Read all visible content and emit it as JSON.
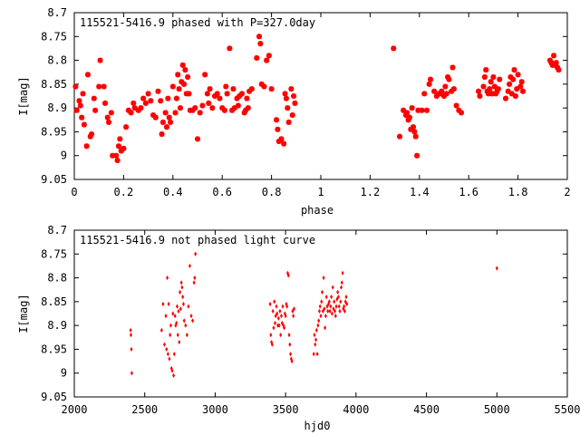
{
  "chart_data": [
    {
      "type": "scatter",
      "title": "115521-5416.9 phased with P=327.0day",
      "xlabel": "phase",
      "ylabel": "I[mag]",
      "xlim": [
        0,
        2
      ],
      "ylim": [
        9.05,
        8.7
      ],
      "y_inverted": true,
      "grid": false,
      "legend": "none",
      "marker": "star",
      "color": "#ff0000",
      "xticks": [
        0,
        0.2,
        0.4,
        0.6,
        0.8,
        1,
        1.2,
        1.4,
        1.6,
        1.8,
        2
      ],
      "xtick_labels": [
        "0",
        "0.2",
        "0.4",
        "0.6",
        "0.8",
        "1",
        "1.2",
        "1.4",
        "1.6",
        "1.8",
        "2"
      ],
      "yticks": [
        8.7,
        8.75,
        8.8,
        8.85,
        8.9,
        8.95,
        9,
        9.05
      ],
      "ytick_labels": [
        "8.7",
        "8.75",
        "8.8",
        "8.85",
        "8.9",
        "8.95",
        "9",
        "9.05"
      ],
      "points": [
        [
          0.005,
          8.855
        ],
        [
          0.01,
          8.905
        ],
        [
          0.02,
          8.885
        ],
        [
          0.025,
          8.895
        ],
        [
          0.03,
          8.92
        ],
        [
          0.04,
          8.935
        ],
        [
          0.035,
          8.87
        ],
        [
          0.05,
          8.98
        ],
        [
          0.055,
          8.83
        ],
        [
          0.065,
          8.96
        ],
        [
          0.07,
          8.955
        ],
        [
          0.08,
          8.88
        ],
        [
          0.085,
          8.905
        ],
        [
          0.1,
          8.855
        ],
        [
          0.105,
          8.8
        ],
        [
          0.12,
          8.855
        ],
        [
          0.125,
          8.89
        ],
        [
          0.135,
          8.92
        ],
        [
          0.14,
          8.93
        ],
        [
          0.15,
          8.91
        ],
        [
          0.155,
          9.0
        ],
        [
          0.17,
          9.0
        ],
        [
          0.175,
          9.01
        ],
        [
          0.18,
          8.98
        ],
        [
          0.19,
          8.99
        ],
        [
          0.2,
          8.985
        ],
        [
          0.185,
          8.965
        ],
        [
          0.21,
          8.94
        ],
        [
          0.22,
          8.905
        ],
        [
          0.23,
          8.91
        ],
        [
          0.24,
          8.89
        ],
        [
          0.245,
          8.9
        ],
        [
          0.26,
          8.905
        ],
        [
          0.27,
          8.9
        ],
        [
          0.28,
          8.88
        ],
        [
          0.29,
          8.89
        ],
        [
          0.3,
          8.87
        ],
        [
          0.31,
          8.885
        ],
        [
          0.32,
          8.915
        ],
        [
          0.33,
          8.92
        ],
        [
          0.34,
          8.865
        ],
        [
          0.35,
          8.885
        ],
        [
          0.355,
          8.955
        ],
        [
          0.36,
          8.93
        ],
        [
          0.37,
          8.91
        ],
        [
          0.375,
          8.94
        ],
        [
          0.38,
          8.88
        ],
        [
          0.385,
          8.92
        ],
        [
          0.39,
          8.93
        ],
        [
          0.4,
          8.855
        ],
        [
          0.41,
          8.91
        ],
        [
          0.415,
          8.88
        ],
        [
          0.42,
          8.83
        ],
        [
          0.425,
          8.86
        ],
        [
          0.43,
          8.9
        ],
        [
          0.435,
          8.845
        ],
        [
          0.44,
          8.81
        ],
        [
          0.445,
          8.85
        ],
        [
          0.45,
          8.82
        ],
        [
          0.455,
          8.87
        ],
        [
          0.46,
          8.835
        ],
        [
          0.465,
          8.87
        ],
        [
          0.47,
          8.905
        ],
        [
          0.48,
          8.905
        ],
        [
          0.49,
          8.9
        ],
        [
          0.5,
          8.965
        ],
        [
          0.51,
          8.91
        ],
        [
          0.52,
          8.895
        ],
        [
          0.53,
          8.83
        ],
        [
          0.54,
          8.87
        ],
        [
          0.545,
          8.89
        ],
        [
          0.55,
          8.86
        ],
        [
          0.56,
          8.9
        ],
        [
          0.57,
          8.875
        ],
        [
          0.58,
          8.87
        ],
        [
          0.59,
          8.88
        ],
        [
          0.6,
          8.9
        ],
        [
          0.61,
          8.905
        ],
        [
          0.615,
          8.855
        ],
        [
          0.62,
          8.87
        ],
        [
          0.63,
          8.775
        ],
        [
          0.64,
          8.905
        ],
        [
          0.645,
          8.86
        ],
        [
          0.65,
          8.9
        ],
        [
          0.66,
          8.88
        ],
        [
          0.665,
          8.895
        ],
        [
          0.67,
          8.875
        ],
        [
          0.68,
          8.87
        ],
        [
          0.69,
          8.91
        ],
        [
          0.695,
          8.905
        ],
        [
          0.7,
          8.88
        ],
        [
          0.705,
          8.9
        ],
        [
          0.71,
          8.865
        ],
        [
          0.72,
          8.86
        ],
        [
          0.74,
          8.795
        ],
        [
          0.75,
          8.75
        ],
        [
          0.755,
          8.765
        ],
        [
          0.76,
          8.85
        ],
        [
          0.77,
          8.855
        ],
        [
          0.78,
          8.8
        ],
        [
          0.79,
          8.79
        ],
        [
          0.8,
          8.86
        ],
        [
          0.82,
          8.925
        ],
        [
          0.825,
          8.945
        ],
        [
          0.83,
          8.97
        ],
        [
          0.84,
          8.965
        ],
        [
          0.85,
          8.975
        ],
        [
          0.855,
          8.87
        ],
        [
          0.86,
          8.88
        ],
        [
          0.865,
          8.9
        ],
        [
          0.87,
          8.93
        ],
        [
          0.88,
          8.86
        ],
        [
          0.885,
          8.915
        ],
        [
          0.89,
          8.875
        ],
        [
          0.895,
          8.89
        ],
        [
          1.295,
          8.775
        ],
        [
          1.32,
          8.96
        ],
        [
          1.335,
          8.905
        ],
        [
          1.345,
          8.915
        ],
        [
          1.35,
          8.91
        ],
        [
          1.355,
          8.925
        ],
        [
          1.36,
          8.92
        ],
        [
          1.365,
          8.945
        ],
        [
          1.37,
          8.9
        ],
        [
          1.375,
          8.94
        ],
        [
          1.38,
          8.95
        ],
        [
          1.385,
          8.96
        ],
        [
          1.39,
          9.0
        ],
        [
          1.395,
          8.905
        ],
        [
          1.41,
          8.905
        ],
        [
          1.42,
          8.87
        ],
        [
          1.43,
          8.905
        ],
        [
          1.44,
          8.85
        ],
        [
          1.445,
          8.84
        ],
        [
          1.46,
          8.865
        ],
        [
          1.47,
          8.875
        ],
        [
          1.48,
          8.87
        ],
        [
          1.485,
          8.87
        ],
        [
          1.49,
          8.865
        ],
        [
          1.5,
          8.875
        ],
        [
          1.505,
          8.855
        ],
        [
          1.51,
          8.87
        ],
        [
          1.515,
          8.835
        ],
        [
          1.52,
          8.84
        ],
        [
          1.53,
          8.865
        ],
        [
          1.535,
          8.815
        ],
        [
          1.54,
          8.86
        ],
        [
          1.55,
          8.895
        ],
        [
          1.56,
          8.905
        ],
        [
          1.57,
          8.91
        ],
        [
          1.64,
          8.865
        ],
        [
          1.645,
          8.875
        ],
        [
          1.66,
          8.855
        ],
        [
          1.665,
          8.835
        ],
        [
          1.67,
          8.82
        ],
        [
          1.675,
          8.865
        ],
        [
          1.68,
          8.87
        ],
        [
          1.685,
          8.86
        ],
        [
          1.69,
          8.845
        ],
        [
          1.695,
          8.87
        ],
        [
          1.7,
          8.835
        ],
        [
          1.705,
          8.855
        ],
        [
          1.71,
          8.87
        ],
        [
          1.715,
          8.865
        ],
        [
          1.72,
          8.86
        ],
        [
          1.725,
          8.84
        ],
        [
          1.75,
          8.88
        ],
        [
          1.76,
          8.865
        ],
        [
          1.765,
          8.85
        ],
        [
          1.77,
          8.835
        ],
        [
          1.775,
          8.87
        ],
        [
          1.78,
          8.84
        ],
        [
          1.785,
          8.82
        ],
        [
          1.79,
          8.875
        ],
        [
          1.795,
          8.86
        ],
        [
          1.8,
          8.83
        ],
        [
          1.81,
          8.855
        ],
        [
          1.815,
          8.845
        ],
        [
          1.82,
          8.865
        ],
        [
          1.93,
          8.8
        ],
        [
          1.935,
          8.805
        ],
        [
          1.94,
          8.81
        ],
        [
          1.945,
          8.79
        ],
        [
          1.95,
          8.81
        ],
        [
          1.955,
          8.805
        ],
        [
          1.96,
          8.815
        ],
        [
          1.965,
          8.82
        ]
      ]
    },
    {
      "type": "scatter",
      "title": "115521-5416.9 not phased light curve",
      "xlabel": "hjd0",
      "ylabel": "I[mag]",
      "xlim": [
        2000,
        5500
      ],
      "ylim": [
        9.05,
        8.7
      ],
      "y_inverted": true,
      "grid": false,
      "legend": "none",
      "marker": "diamond",
      "color": "#ff0000",
      "xticks": [
        2000,
        2500,
        3000,
        3500,
        4000,
        4500,
        5000,
        5500
      ],
      "xtick_labels": [
        "2000",
        "2500",
        "3000",
        "3500",
        "4000",
        "4500",
        "5000",
        "5500"
      ],
      "yticks": [
        8.7,
        8.75,
        8.8,
        8.85,
        8.9,
        8.95,
        9,
        9.05
      ],
      "ytick_labels": [
        "8.7",
        "8.75",
        "8.8",
        "8.85",
        "8.9",
        "8.95",
        "9",
        "9.05"
      ],
      "points": [
        [
          2400,
          8.91
        ],
        [
          2402,
          8.92
        ],
        [
          2405,
          8.95
        ],
        [
          2408,
          9.0
        ],
        [
          2620,
          8.91
        ],
        [
          2630,
          8.855
        ],
        [
          2640,
          8.94
        ],
        [
          2650,
          8.88
        ],
        [
          2655,
          8.95
        ],
        [
          2660,
          8.8
        ],
        [
          2665,
          8.96
        ],
        [
          2670,
          8.855
        ],
        [
          2675,
          8.97
        ],
        [
          2680,
          8.92
        ],
        [
          2685,
          8.9
        ],
        [
          2690,
          8.99
        ],
        [
          2695,
          8.995
        ],
        [
          2700,
          8.875
        ],
        [
          2705,
          9.005
        ],
        [
          2710,
          8.96
        ],
        [
          2715,
          8.88
        ],
        [
          2720,
          8.9
        ],
        [
          2725,
          8.895
        ],
        [
          2730,
          8.86
        ],
        [
          2735,
          8.92
        ],
        [
          2740,
          8.87
        ],
        [
          2745,
          8.935
        ],
        [
          2750,
          8.83
        ],
        [
          2755,
          8.865
        ],
        [
          2760,
          8.81
        ],
        [
          2765,
          8.82
        ],
        [
          2770,
          8.84
        ],
        [
          2775,
          8.855
        ],
        [
          2780,
          8.89
        ],
        [
          2790,
          8.9
        ],
        [
          2800,
          8.92
        ],
        [
          2810,
          8.86
        ],
        [
          2820,
          8.775
        ],
        [
          2830,
          8.88
        ],
        [
          2840,
          8.89
        ],
        [
          2850,
          8.81
        ],
        [
          2855,
          8.8
        ],
        [
          2860,
          8.75
        ],
        [
          3390,
          8.855
        ],
        [
          3395,
          8.92
        ],
        [
          3400,
          8.935
        ],
        [
          3405,
          8.94
        ],
        [
          3410,
          8.87
        ],
        [
          3415,
          8.905
        ],
        [
          3420,
          8.85
        ],
        [
          3425,
          8.895
        ],
        [
          3430,
          8.88
        ],
        [
          3435,
          8.86
        ],
        [
          3440,
          8.875
        ],
        [
          3445,
          8.9
        ],
        [
          3450,
          8.885
        ],
        [
          3455,
          8.9
        ],
        [
          3460,
          8.87
        ],
        [
          3465,
          8.92
        ],
        [
          3470,
          8.88
        ],
        [
          3475,
          8.895
        ],
        [
          3480,
          8.86
        ],
        [
          3485,
          8.9
        ],
        [
          3490,
          8.905
        ],
        [
          3495,
          8.875
        ],
        [
          3500,
          8.88
        ],
        [
          3505,
          8.855
        ],
        [
          3510,
          8.86
        ],
        [
          3515,
          8.79
        ],
        [
          3520,
          8.795
        ],
        [
          3525,
          8.92
        ],
        [
          3530,
          8.94
        ],
        [
          3535,
          8.96
        ],
        [
          3540,
          8.97
        ],
        [
          3545,
          8.975
        ],
        [
          3550,
          8.87
        ],
        [
          3555,
          8.88
        ],
        [
          3560,
          8.865
        ],
        [
          3700,
          8.96
        ],
        [
          3705,
          8.92
        ],
        [
          3710,
          8.94
        ],
        [
          3715,
          8.93
        ],
        [
          3720,
          8.91
        ],
        [
          3725,
          8.96
        ],
        [
          3730,
          8.9
        ],
        [
          3735,
          8.89
        ],
        [
          3740,
          8.87
        ],
        [
          3745,
          8.86
        ],
        [
          3750,
          8.88
        ],
        [
          3755,
          8.85
        ],
        [
          3760,
          8.83
        ],
        [
          3765,
          8.87
        ],
        [
          3770,
          8.8
        ],
        [
          3775,
          8.865
        ],
        [
          3780,
          8.905
        ],
        [
          3785,
          8.88
        ],
        [
          3790,
          8.84
        ],
        [
          3795,
          8.86
        ],
        [
          3800,
          8.87
        ],
        [
          3805,
          8.855
        ],
        [
          3810,
          8.85
        ],
        [
          3815,
          8.87
        ],
        [
          3820,
          8.86
        ],
        [
          3825,
          8.84
        ],
        [
          3830,
          8.875
        ],
        [
          3835,
          8.82
        ],
        [
          3840,
          8.865
        ],
        [
          3845,
          8.85
        ],
        [
          3850,
          8.87
        ],
        [
          3855,
          8.88
        ],
        [
          3860,
          8.86
        ],
        [
          3865,
          8.845
        ],
        [
          3870,
          8.83
        ],
        [
          3875,
          8.84
        ],
        [
          3880,
          8.86
        ],
        [
          3885,
          8.87
        ],
        [
          3890,
          8.85
        ],
        [
          3895,
          8.82
        ],
        [
          3900,
          8.81
        ],
        [
          3905,
          8.79
        ],
        [
          3910,
          8.865
        ],
        [
          3915,
          8.86
        ],
        [
          3920,
          8.87
        ],
        [
          3925,
          8.85
        ],
        [
          3930,
          8.84
        ],
        [
          3935,
          8.855
        ],
        [
          5000,
          8.78
        ]
      ]
    }
  ]
}
